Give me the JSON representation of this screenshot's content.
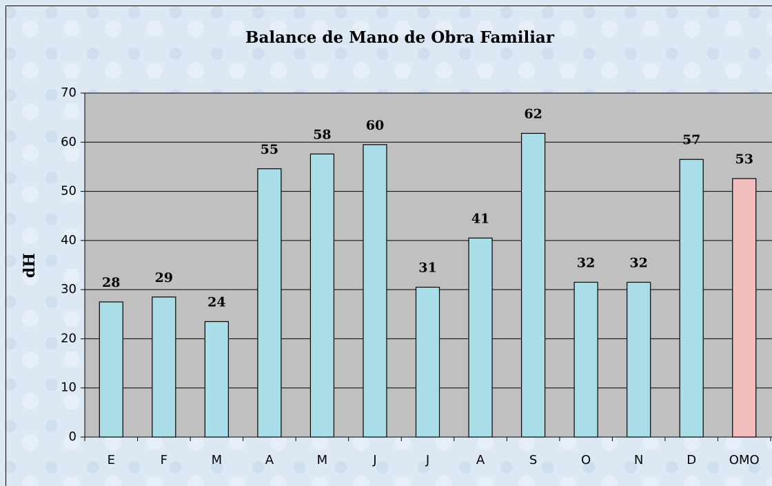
{
  "chart_data": {
    "type": "bar",
    "title": "Balance de Mano de Obra Familiar",
    "y_label": "dH",
    "categories": [
      "E",
      "F",
      "M",
      "A",
      "M",
      "J",
      "J",
      "A",
      "S",
      "O",
      "N",
      "D",
      "OMO"
    ],
    "values": [
      27.5,
      28.5,
      23.5,
      54.6,
      57.6,
      59.5,
      30.5,
      40.5,
      61.8,
      31.5,
      31.5,
      56.5,
      52.6
    ],
    "value_labels": [
      "28",
      "29",
      "24",
      "55",
      "58",
      "60",
      "31",
      "41",
      "62",
      "32",
      "32",
      "57",
      "53"
    ],
    "colors": [
      "#a9dde8",
      "#a9dde8",
      "#a9dde8",
      "#a9dde8",
      "#a9dde8",
      "#a9dde8",
      "#a9dde8",
      "#a9dde8",
      "#a9dde8",
      "#a9dde8",
      "#a9dde8",
      "#a9dde8",
      "#f0bcbc"
    ],
    "ylim": [
      0,
      70
    ],
    "yticks": [
      0,
      10,
      20,
      30,
      40,
      50,
      60,
      70
    ],
    "grid": true
  }
}
